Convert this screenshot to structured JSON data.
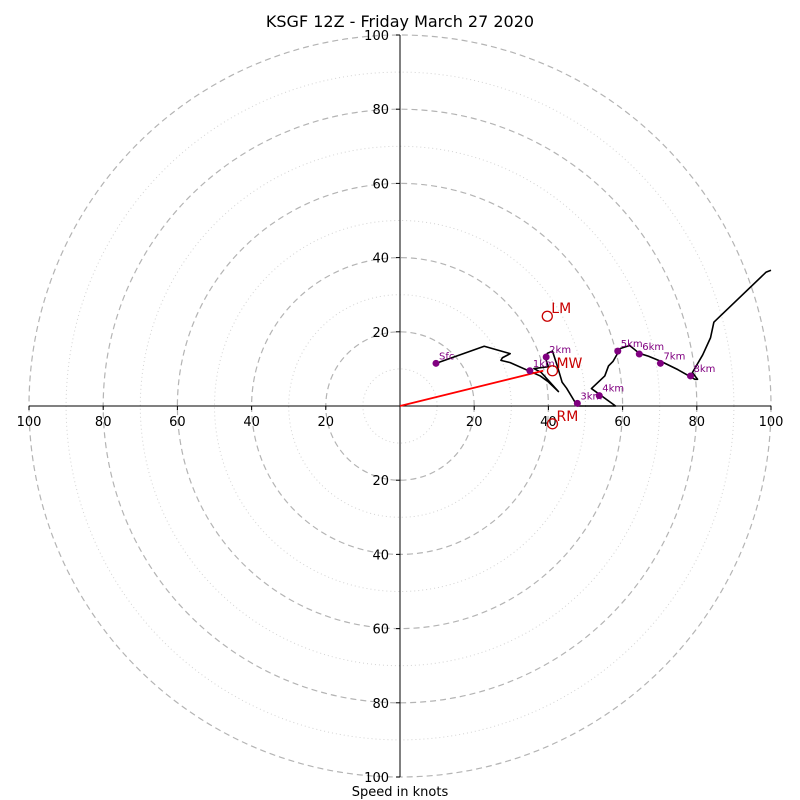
{
  "chart_data": {
    "type": "scatter",
    "title": "KSGF 12Z - Friday March 27 2020",
    "xlabel": "Speed in knots",
    "ylabel": "",
    "xlim": [
      -100,
      100
    ],
    "ylim": [
      -100,
      100
    ],
    "grid": true,
    "axis_ticks": {
      "x": [
        {
          "value": -100,
          "label": "100"
        },
        {
          "value": -80,
          "label": "80"
        },
        {
          "value": -60,
          "label": "60"
        },
        {
          "value": -40,
          "label": "40"
        },
        {
          "value": -20,
          "label": "20"
        },
        {
          "value": 20,
          "label": "20"
        },
        {
          "value": 40,
          "label": "40"
        },
        {
          "value": 60,
          "label": "60"
        },
        {
          "value": 80,
          "label": "80"
        },
        {
          "value": 100,
          "label": "100"
        }
      ],
      "y": [
        {
          "value": 100,
          "label": "100"
        },
        {
          "value": 80,
          "label": "80"
        },
        {
          "value": 60,
          "label": "60"
        },
        {
          "value": 40,
          "label": "40"
        },
        {
          "value": 20,
          "label": "20"
        },
        {
          "value": -20,
          "label": "20"
        },
        {
          "value": -40,
          "label": "40"
        },
        {
          "value": -60,
          "label": "60"
        },
        {
          "value": -80,
          "label": "80"
        },
        {
          "value": -100,
          "label": "100"
        }
      ]
    },
    "rings_major": [
      20,
      40,
      60,
      80,
      100
    ],
    "rings_minor": [
      10,
      30,
      50,
      70,
      90
    ],
    "hodograph_trace": {
      "color": "#000000",
      "points": [
        [
          9.7,
          11.5
        ],
        [
          22.7,
          16.1
        ],
        [
          29.7,
          14.1
        ],
        [
          27.6,
          13.0
        ],
        [
          27.2,
          12.3
        ],
        [
          29.7,
          11.7
        ],
        [
          37.8,
          8.1
        ],
        [
          40.0,
          6.5
        ],
        [
          42.7,
          3.9
        ],
        [
          38.1,
          9.0
        ],
        [
          36.1,
          10.1
        ],
        [
          40.0,
          10.6
        ],
        [
          39.4,
          12.3
        ],
        [
          39.7,
          14.2
        ],
        [
          41.1,
          14.8
        ],
        [
          42.3,
          11.1
        ],
        [
          43.7,
          6.4
        ],
        [
          44.9,
          4.8
        ],
        [
          47.8,
          0.0
        ],
        [
          58.1,
          0.0
        ],
        [
          51.6,
          4.7
        ],
        [
          55.2,
          8.1
        ],
        [
          56.2,
          10.8
        ],
        [
          57.4,
          12.0
        ],
        [
          59.4,
          15.5
        ],
        [
          61.9,
          16.3
        ],
        [
          64.5,
          14.2
        ],
        [
          67.0,
          13.4
        ],
        [
          70.2,
          12.1
        ],
        [
          74.9,
          9.8
        ],
        [
          79.5,
          7.2
        ],
        [
          80.2,
          7.2
        ],
        [
          78.8,
          9.0
        ],
        [
          81.6,
          13.8
        ],
        [
          83.7,
          18.4
        ],
        [
          84.6,
          22.6
        ],
        [
          98.7,
          36.1
        ],
        [
          100.0,
          36.6
        ]
      ]
    },
    "storm_motion_vector": {
      "color": "#ff0000",
      "from": [
        0,
        0
      ],
      "to": [
        38.6,
        9.5
      ]
    },
    "height_markers": {
      "color": "#800080",
      "points": [
        {
          "label": "Sfc",
          "x": 9.7,
          "y": 11.5
        },
        {
          "label": "1km",
          "x": 35.0,
          "y": 9.5
        },
        {
          "label": "2km",
          "x": 39.4,
          "y": 13.2
        },
        {
          "label": "3km",
          "x": 47.8,
          "y": 0.7
        },
        {
          "label": "4km",
          "x": 53.7,
          "y": 2.8
        },
        {
          "label": "5km",
          "x": 58.7,
          "y": 14.8
        },
        {
          "label": "6km",
          "x": 64.5,
          "y": 14.0
        },
        {
          "label": "7km",
          "x": 70.2,
          "y": 11.5
        },
        {
          "label": "8km",
          "x": 78.3,
          "y": 8.1
        }
      ]
    },
    "storm_motions": {
      "color": "#c80000",
      "points": [
        {
          "label": "LM",
          "x": 39.7,
          "y": 24.2
        },
        {
          "label": "MW",
          "x": 41.1,
          "y": 9.5
        },
        {
          "label": "RM",
          "x": 41.1,
          "y": -4.8
        }
      ]
    }
  }
}
